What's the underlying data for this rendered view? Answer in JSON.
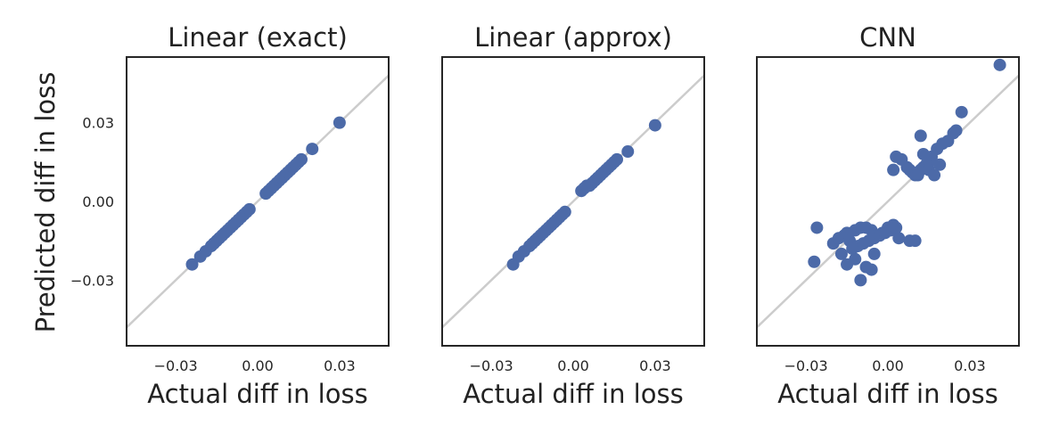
{
  "figure": {
    "ylabel": "Predicted diff in loss",
    "xlabel": "Actual diff in loss",
    "y_ticks": [
      "0.03",
      "0.00",
      "−0.03"
    ],
    "x_ticks": [
      "−0.03",
      "0.00",
      "0.03"
    ],
    "point_color": "#4c6aa8",
    "diagonal_color": "#cccccc"
  },
  "chart_data": [
    {
      "type": "scatter",
      "title": "Linear (exact)",
      "xlabel": "Actual diff in loss",
      "ylabel": "Predicted diff in loss",
      "xlim": [
        -0.048,
        0.048
      ],
      "ylim": [
        -0.055,
        0.055
      ],
      "grid": false,
      "reference_line": "y = x",
      "x": [
        -0.024,
        -0.021,
        -0.019,
        -0.017,
        -0.016,
        -0.015,
        -0.014,
        -0.013,
        -0.012,
        -0.011,
        -0.01,
        -0.009,
        -0.008,
        -0.007,
        -0.006,
        -0.005,
        -0.004,
        -0.003,
        0.003,
        0.004,
        0.005,
        0.006,
        0.007,
        0.008,
        0.009,
        0.01,
        0.011,
        0.012,
        0.013,
        0.014,
        0.015,
        0.016,
        0.02,
        0.03
      ],
      "y": [
        -0.024,
        -0.021,
        -0.019,
        -0.017,
        -0.016,
        -0.015,
        -0.014,
        -0.013,
        -0.012,
        -0.011,
        -0.01,
        -0.009,
        -0.008,
        -0.007,
        -0.006,
        -0.005,
        -0.004,
        -0.003,
        0.003,
        0.004,
        0.005,
        0.006,
        0.007,
        0.008,
        0.009,
        0.01,
        0.011,
        0.012,
        0.013,
        0.014,
        0.015,
        0.016,
        0.02,
        0.03
      ]
    },
    {
      "type": "scatter",
      "title": "Linear (approx)",
      "xlabel": "Actual diff in loss",
      "ylabel": "",
      "xlim": [
        -0.048,
        0.048
      ],
      "ylim": [
        -0.055,
        0.055
      ],
      "grid": false,
      "reference_line": "y = x",
      "x": [
        -0.022,
        -0.02,
        -0.018,
        -0.016,
        -0.015,
        -0.014,
        -0.013,
        -0.012,
        -0.011,
        -0.01,
        -0.009,
        -0.008,
        -0.007,
        -0.006,
        -0.005,
        -0.004,
        -0.003,
        0.003,
        0.004,
        0.005,
        0.006,
        0.007,
        0.008,
        0.009,
        0.01,
        0.011,
        0.012,
        0.013,
        0.014,
        0.015,
        0.016,
        0.02,
        0.03
      ],
      "y": [
        -0.024,
        -0.021,
        -0.019,
        -0.017,
        -0.016,
        -0.015,
        -0.014,
        -0.013,
        -0.012,
        -0.011,
        -0.01,
        -0.009,
        -0.008,
        -0.007,
        -0.006,
        -0.005,
        -0.004,
        0.004,
        0.005,
        0.006,
        0.006,
        0.007,
        0.008,
        0.009,
        0.01,
        0.011,
        0.012,
        0.013,
        0.014,
        0.015,
        0.016,
        0.019,
        0.029
      ]
    },
    {
      "type": "scatter",
      "title": "CNN",
      "xlabel": "Actual diff in loss",
      "ylabel": "",
      "xlim": [
        -0.048,
        0.048
      ],
      "ylim": [
        -0.055,
        0.055
      ],
      "grid": false,
      "reference_line": "y = x",
      "x": [
        0.041,
        0.027,
        0.025,
        0.024,
        0.022,
        0.02,
        0.018,
        0.016,
        0.015,
        0.014,
        0.013,
        0.012,
        0.011,
        0.01,
        0.009,
        0.008,
        0.007,
        0.005,
        0.003,
        0.002,
        0.012,
        0.015,
        0.019,
        0.013,
        0.011,
        0.017,
        -0.027,
        -0.026,
        -0.02,
        -0.018,
        -0.016,
        -0.015,
        -0.014,
        -0.012,
        -0.01,
        -0.008,
        -0.006,
        -0.004,
        -0.002,
        0.0,
        0.002,
        0.004,
        0.008,
        0.01,
        -0.013,
        -0.011,
        -0.009,
        -0.007,
        -0.005,
        -0.003,
        -0.001,
        0.001,
        0.003,
        -0.017,
        -0.012,
        -0.008,
        -0.005,
        -0.015,
        -0.01,
        -0.006
      ],
      "y": [
        0.052,
        0.034,
        0.027,
        0.026,
        0.023,
        0.022,
        0.02,
        0.017,
        0.015,
        0.014,
        0.013,
        0.012,
        0.011,
        0.01,
        0.011,
        0.012,
        0.013,
        0.016,
        0.017,
        0.012,
        0.025,
        0.012,
        0.014,
        0.018,
        0.01,
        0.01,
        -0.023,
        -0.01,
        -0.016,
        -0.014,
        -0.013,
        -0.012,
        -0.015,
        -0.011,
        -0.01,
        -0.01,
        -0.011,
        -0.013,
        -0.012,
        -0.01,
        -0.009,
        -0.014,
        -0.015,
        -0.015,
        -0.018,
        -0.017,
        -0.016,
        -0.015,
        -0.014,
        -0.013,
        -0.012,
        -0.011,
        -0.01,
        -0.02,
        -0.022,
        -0.025,
        -0.02,
        -0.024,
        -0.03,
        -0.026
      ]
    }
  ]
}
